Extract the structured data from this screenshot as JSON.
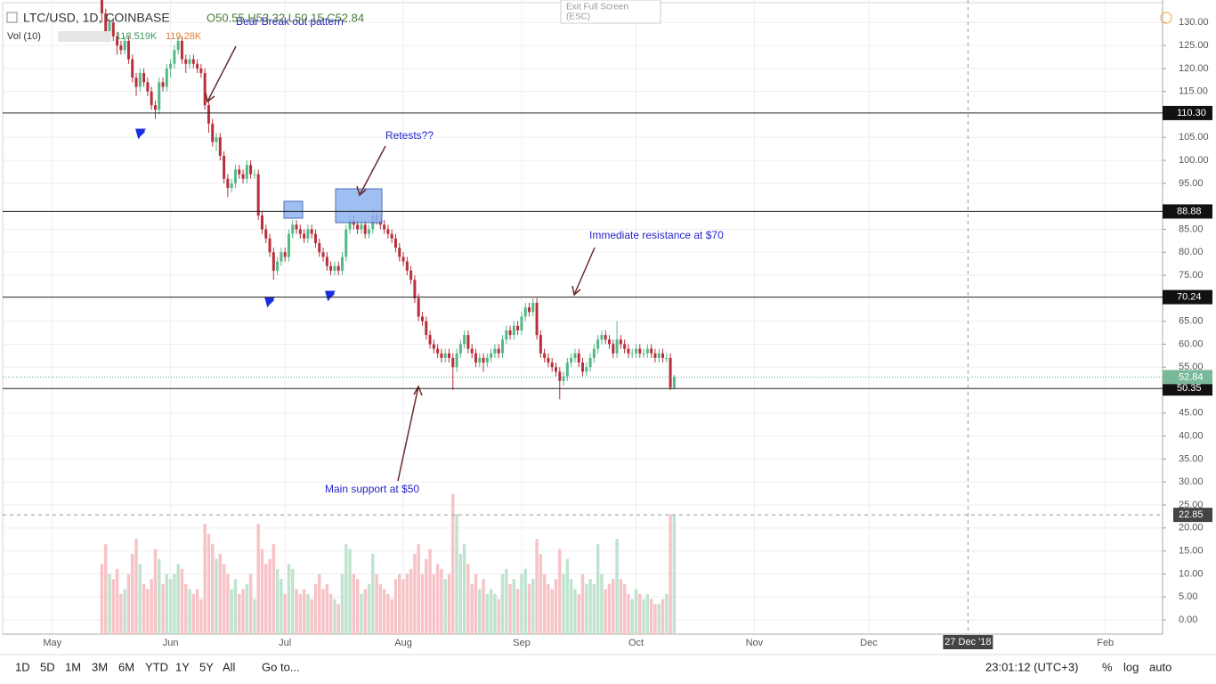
{
  "chart_data": {
    "type": "candlestick",
    "title": "LTC/USD, 1D, COINBASE",
    "ohlc_label": "O50.55 H53.32 L50.15 C52.84",
    "volume_label": "Vol (10)",
    "volume_values": [
      "118.519K",
      "119.28K"
    ],
    "up_color": "#53b987",
    "down_color": "#b8303b",
    "volume_up_color": "#bfe3cf",
    "volume_down_color": "#f7c3c6",
    "xlim": [
      "2018-04-18",
      "2019-02-16"
    ],
    "xticks": [
      {
        "value": "2018-05-01",
        "label": "May"
      },
      {
        "value": "2018-06-01",
        "label": "Jun"
      },
      {
        "value": "2018-07-01",
        "label": "Jul"
      },
      {
        "value": "2018-08-01",
        "label": "Aug"
      },
      {
        "value": "2018-09-01",
        "label": "Sep"
      },
      {
        "value": "2018-10-01",
        "label": "Oct"
      },
      {
        "value": "2018-11-01",
        "label": "Nov"
      },
      {
        "value": "2018-12-01",
        "label": "Dec"
      },
      {
        "value": "2019-02-01",
        "label": "Feb"
      }
    ],
    "ylim": [
      -3.1,
      134.9
    ],
    "yticks": [
      {
        "value": 0,
        "label": "0.00"
      },
      {
        "value": 5,
        "label": "5.00"
      },
      {
        "value": 10,
        "label": "10.00"
      },
      {
        "value": 15,
        "label": "15.00"
      },
      {
        "value": 20,
        "label": "20.00"
      },
      {
        "value": 25,
        "label": "25.00"
      },
      {
        "value": 30,
        "label": "30.00"
      },
      {
        "value": 35,
        "label": "35.00"
      },
      {
        "value": 40,
        "label": "40.00"
      },
      {
        "value": 45,
        "label": "45.00"
      },
      {
        "value": 55,
        "label": "55.00"
      },
      {
        "value": 60,
        "label": "60.00"
      },
      {
        "value": 65,
        "label": "65.00"
      },
      {
        "value": 75,
        "label": "75.00"
      },
      {
        "value": 80,
        "label": "80.00"
      },
      {
        "value": 85,
        "label": "85.00"
      },
      {
        "value": 95,
        "label": "95.00"
      },
      {
        "value": 100,
        "label": "100.00"
      },
      {
        "value": 105,
        "label": "105.00"
      },
      {
        "value": 115,
        "label": "115.00"
      },
      {
        "value": 120,
        "label": "120.00"
      },
      {
        "value": 125,
        "label": "125.00"
      },
      {
        "value": 130,
        "label": "130.00"
      }
    ],
    "grid": true,
    "vlim": [
      0,
      160
    ],
    "levels": [
      {
        "value": 110.3,
        "label": "110.30"
      },
      {
        "value": 88.88,
        "label": "88.88"
      },
      {
        "value": 70.24,
        "label": "70.24"
      },
      {
        "value": 50.35,
        "label": "50.35"
      }
    ],
    "last_price": {
      "value": 52.84,
      "label": "52.84"
    },
    "crosshair": {
      "date": {
        "value": "2018-12-27",
        "label": "27 Dec '18"
      },
      "price": {
        "value": 22.85,
        "label": "22.85"
      }
    },
    "annotations": [
      "Bear Break out pattern",
      "Retests??",
      "Immediate resistance at $70",
      "Main support at $50"
    ],
    "candles": [
      [
        "2018-05-14",
        135,
        136,
        130,
        132,
        70
      ],
      [
        "2018-05-15",
        132,
        133,
        127,
        128,
        90
      ],
      [
        "2018-05-16",
        128,
        131,
        126,
        130,
        60
      ],
      [
        "2018-05-17",
        130,
        131,
        126,
        127,
        55
      ],
      [
        "2018-05-18",
        127,
        128,
        123,
        125,
        65
      ],
      [
        "2018-05-19",
        125,
        126,
        123,
        124,
        40
      ],
      [
        "2018-05-20",
        124,
        127,
        123,
        126,
        45
      ],
      [
        "2018-05-21",
        126,
        127,
        121,
        122,
        60
      ],
      [
        "2018-05-22",
        122,
        123,
        117,
        118,
        80
      ],
      [
        "2018-05-23",
        118,
        119,
        114,
        116,
        95
      ],
      [
        "2018-05-24",
        116,
        120,
        115,
        119,
        70
      ],
      [
        "2018-05-25",
        119,
        120,
        116,
        117,
        50
      ],
      [
        "2018-05-26",
        117,
        118,
        114,
        115,
        45
      ],
      [
        "2018-05-27",
        115,
        116,
        111,
        112,
        55
      ],
      [
        "2018-05-28",
        112,
        113,
        109,
        111,
        85
      ],
      [
        "2018-05-29",
        111,
        118,
        110,
        117,
        75
      ],
      [
        "2018-05-30",
        117,
        118,
        115,
        116,
        50
      ],
      [
        "2018-05-31",
        116,
        121,
        115,
        120,
        60
      ],
      [
        "2018-06-01",
        120,
        122,
        118,
        121,
        55
      ],
      [
        "2018-06-02",
        121,
        125,
        120,
        124,
        60
      ],
      [
        "2018-06-03",
        124,
        127,
        123,
        126,
        70
      ],
      [
        "2018-06-04",
        126,
        127,
        121,
        122,
        65
      ],
      [
        "2018-06-05",
        122,
        123,
        119,
        121,
        50
      ],
      [
        "2018-06-06",
        121,
        123,
        120,
        122,
        45
      ],
      [
        "2018-06-07",
        122,
        123,
        120,
        121,
        40
      ],
      [
        "2018-06-08",
        121,
        122,
        119,
        120,
        45
      ],
      [
        "2018-06-09",
        120,
        121,
        118,
        119,
        35
      ],
      [
        "2018-06-10",
        119,
        120,
        111,
        112,
        110
      ],
      [
        "2018-06-11",
        112,
        113,
        106,
        108,
        100
      ],
      [
        "2018-06-12",
        108,
        109,
        103,
        104,
        90
      ],
      [
        "2018-06-13",
        104,
        106,
        102,
        105,
        75
      ],
      [
        "2018-06-14",
        105,
        106,
        100,
        101,
        80
      ],
      [
        "2018-06-15",
        101,
        102,
        95,
        96,
        70
      ],
      [
        "2018-06-16",
        96,
        97,
        92,
        94,
        60
      ],
      [
        "2018-06-17",
        94,
        96,
        93,
        95,
        45
      ],
      [
        "2018-06-18",
        95,
        99,
        94,
        98,
        55
      ],
      [
        "2018-06-19",
        98,
        99,
        96,
        97,
        40
      ],
      [
        "2018-06-20",
        97,
        98,
        95,
        96,
        45
      ],
      [
        "2018-06-21",
        96,
        100,
        95,
        99,
        50
      ],
      [
        "2018-06-22",
        99,
        100,
        96,
        97,
        60
      ],
      [
        "2018-06-23",
        97,
        98,
        96,
        97,
        35
      ],
      [
        "2018-06-24",
        97,
        98,
        87,
        88,
        110
      ],
      [
        "2018-06-25",
        88,
        89,
        84,
        85,
        85
      ],
      [
        "2018-06-26",
        85,
        86,
        82,
        83,
        70
      ],
      [
        "2018-06-27",
        83,
        84,
        79,
        80,
        75
      ],
      [
        "2018-06-28",
        80,
        81,
        74,
        76,
        90
      ],
      [
        "2018-06-29",
        76,
        79,
        75,
        78,
        65
      ],
      [
        "2018-06-30",
        78,
        81,
        77,
        80,
        55
      ],
      [
        "2018-07-01",
        80,
        81,
        78,
        79,
        40
      ],
      [
        "2018-07-02",
        79,
        85,
        78,
        84,
        70
      ],
      [
        "2018-07-03",
        84,
        87,
        83,
        86,
        65
      ],
      [
        "2018-07-04",
        86,
        87,
        84,
        85,
        45
      ],
      [
        "2018-07-05",
        85,
        86,
        83,
        84,
        40
      ],
      [
        "2018-07-06",
        84,
        85,
        82,
        83,
        45
      ],
      [
        "2018-07-07",
        83,
        86,
        82,
        85,
        40
      ],
      [
        "2018-07-08",
        85,
        86,
        83,
        84,
        35
      ],
      [
        "2018-07-09",
        84,
        85,
        81,
        82,
        50
      ],
      [
        "2018-07-10",
        82,
        83,
        79,
        80,
        60
      ],
      [
        "2018-07-11",
        80,
        81,
        78,
        79,
        45
      ],
      [
        "2018-07-12",
        79,
        80,
        76,
        77,
        50
      ],
      [
        "2018-07-13",
        77,
        78,
        75,
        76,
        40
      ],
      [
        "2018-07-14",
        76,
        78,
        75,
        77,
        35
      ],
      [
        "2018-07-15",
        77,
        78,
        75,
        76,
        30
      ],
      [
        "2018-07-16",
        76,
        80,
        75,
        79,
        60
      ],
      [
        "2018-07-17",
        79,
        86,
        78,
        85,
        90
      ],
      [
        "2018-07-18",
        85,
        89,
        84,
        87,
        85
      ],
      [
        "2018-07-19",
        87,
        88,
        85,
        86,
        60
      ],
      [
        "2018-07-20",
        86,
        87,
        84,
        85,
        55
      ],
      [
        "2018-07-21",
        85,
        87,
        84,
        86,
        40
      ],
      [
        "2018-07-22",
        86,
        87,
        83,
        84,
        45
      ],
      [
        "2018-07-23",
        84,
        86,
        83,
        85,
        50
      ],
      [
        "2018-07-24",
        85,
        90,
        84,
        88,
        80
      ],
      [
        "2018-07-25",
        88,
        89,
        86,
        87,
        60
      ],
      [
        "2018-07-26",
        87,
        88,
        85,
        86,
        50
      ],
      [
        "2018-07-27",
        86,
        87,
        84,
        85,
        45
      ],
      [
        "2018-07-28",
        85,
        86,
        83,
        84,
        40
      ],
      [
        "2018-07-29",
        84,
        85,
        82,
        83,
        35
      ],
      [
        "2018-07-30",
        83,
        84,
        80,
        81,
        55
      ],
      [
        "2018-07-31",
        81,
        82,
        78,
        79,
        60
      ],
      [
        "2018-08-01",
        79,
        80,
        77,
        78,
        55
      ],
      [
        "2018-08-02",
        78,
        79,
        75,
        76,
        60
      ],
      [
        "2018-08-03",
        76,
        77,
        73,
        74,
        65
      ],
      [
        "2018-08-04",
        74,
        75,
        69,
        70,
        80
      ],
      [
        "2018-08-05",
        70,
        71,
        65,
        66,
        90
      ],
      [
        "2018-08-06",
        66,
        67,
        64,
        65,
        60
      ],
      [
        "2018-08-07",
        65,
        66,
        61,
        62,
        75
      ],
      [
        "2018-08-08",
        62,
        63,
        59,
        60,
        85
      ],
      [
        "2018-08-09",
        60,
        61,
        58,
        59,
        60
      ],
      [
        "2018-08-10",
        59,
        60,
        57,
        58,
        70
      ],
      [
        "2018-08-11",
        58,
        59,
        56,
        57,
        65
      ],
      [
        "2018-08-12",
        57,
        59,
        56,
        58,
        55
      ],
      [
        "2018-08-13",
        58,
        59,
        56,
        57,
        60
      ],
      [
        "2018-08-14",
        57,
        58,
        50,
        55,
        140
      ],
      [
        "2018-08-15",
        55,
        59,
        54,
        58,
        120
      ],
      [
        "2018-08-16",
        58,
        61,
        57,
        60,
        80
      ],
      [
        "2018-08-17",
        60,
        63,
        59,
        62,
        90
      ],
      [
        "2018-08-18",
        62,
        63,
        58,
        59,
        70
      ],
      [
        "2018-08-19",
        59,
        60,
        57,
        58,
        50
      ],
      [
        "2018-08-20",
        58,
        59,
        55,
        56,
        60
      ],
      [
        "2018-08-21",
        56,
        58,
        55,
        57,
        45
      ],
      [
        "2018-08-22",
        57,
        58,
        54,
        56,
        55
      ],
      [
        "2018-08-23",
        56,
        58,
        55,
        57,
        40
      ],
      [
        "2018-08-24",
        57,
        59,
        56,
        58,
        45
      ],
      [
        "2018-08-25",
        58,
        60,
        57,
        59,
        40
      ],
      [
        "2018-08-26",
        59,
        60,
        57,
        58,
        35
      ],
      [
        "2018-08-27",
        58,
        62,
        57,
        61,
        60
      ],
      [
        "2018-08-28",
        61,
        64,
        60,
        63,
        65
      ],
      [
        "2018-08-29",
        63,
        64,
        61,
        62,
        50
      ],
      [
        "2018-08-30",
        62,
        65,
        61,
        64,
        55
      ],
      [
        "2018-08-31",
        64,
        65,
        62,
        63,
        45
      ],
      [
        "2018-09-01",
        63,
        67,
        62,
        66,
        60
      ],
      [
        "2018-09-02",
        66,
        69,
        65,
        68,
        65
      ],
      [
        "2018-09-03",
        68,
        69,
        66,
        67,
        50
      ],
      [
        "2018-09-04",
        67,
        70,
        66,
        69,
        55
      ],
      [
        "2018-09-05",
        69,
        70,
        61,
        62,
        95
      ],
      [
        "2018-09-06",
        62,
        63,
        57,
        58,
        80
      ],
      [
        "2018-09-07",
        58,
        59,
        56,
        57,
        60
      ],
      [
        "2018-09-08",
        57,
        58,
        55,
        56,
        50
      ],
      [
        "2018-09-09",
        56,
        57,
        54,
        55,
        45
      ],
      [
        "2018-09-10",
        55,
        56,
        53,
        54,
        55
      ],
      [
        "2018-09-11",
        54,
        55,
        48,
        52,
        85
      ],
      [
        "2018-09-12",
        52,
        54,
        51,
        53,
        60
      ],
      [
        "2018-09-13",
        53,
        57,
        52,
        56,
        75
      ],
      [
        "2018-09-14",
        56,
        58,
        55,
        57,
        55
      ],
      [
        "2018-09-15",
        57,
        59,
        56,
        58,
        45
      ],
      [
        "2018-09-16",
        58,
        59,
        55,
        56,
        40
      ],
      [
        "2018-09-17",
        56,
        57,
        53,
        54,
        60
      ],
      [
        "2018-09-18",
        54,
        56,
        53,
        55,
        50
      ],
      [
        "2018-09-19",
        55,
        58,
        54,
        57,
        55
      ],
      [
        "2018-09-20",
        57,
        60,
        56,
        59,
        50
      ],
      [
        "2018-09-21",
        59,
        62,
        58,
        61,
        90
      ],
      [
        "2018-09-22",
        61,
        63,
        60,
        62,
        60
      ],
      [
        "2018-09-23",
        62,
        63,
        60,
        61,
        45
      ],
      [
        "2018-09-24",
        61,
        62,
        59,
        60,
        50
      ],
      [
        "2018-09-25",
        60,
        61,
        57,
        58,
        55
      ],
      [
        "2018-09-26",
        58,
        65,
        57,
        61,
        95
      ],
      [
        "2018-09-27",
        61,
        62,
        59,
        60,
        55
      ],
      [
        "2018-09-28",
        60,
        61,
        58,
        59,
        50
      ],
      [
        "2018-09-29",
        59,
        60,
        57,
        58,
        40
      ],
      [
        "2018-09-30",
        58,
        59,
        57,
        58,
        35
      ],
      [
        "2018-10-01",
        58,
        60,
        57,
        59,
        45
      ],
      [
        "2018-10-02",
        59,
        60,
        57,
        58,
        40
      ],
      [
        "2018-10-03",
        58,
        59,
        57,
        58,
        35
      ],
      [
        "2018-10-04",
        58,
        60,
        57,
        59,
        40
      ],
      [
        "2018-10-05",
        59,
        60,
        57,
        58,
        35
      ],
      [
        "2018-10-06",
        58,
        59,
        56,
        57,
        30
      ],
      [
        "2018-10-07",
        57,
        59,
        56,
        58,
        30
      ],
      [
        "2018-10-08",
        58,
        59,
        56,
        57,
        35
      ],
      [
        "2018-10-09",
        57,
        58,
        56,
        57,
        40
      ],
      [
        "2018-10-10",
        57,
        58,
        50,
        50.55,
        120
      ],
      [
        "2018-10-11",
        50.55,
        53.32,
        50.15,
        52.84,
        118.519
      ]
    ]
  },
  "ui": {
    "exit_fullscreen": "Exit Full Screen",
    "esc": "(ESC)",
    "ranges": [
      "1D",
      "5D",
      "1M",
      "3M",
      "6M",
      "YTD",
      "1Y",
      "5Y",
      "All"
    ],
    "goto": "Go to...",
    "clock": "23:01:12 (UTC+3)",
    "scale_buttons": [
      "%",
      "log",
      "auto"
    ]
  }
}
